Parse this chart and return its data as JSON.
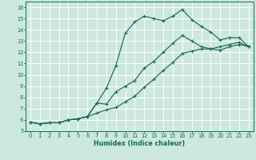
{
  "xlabel": "Humidex (Indice chaleur)",
  "bg_color": "#cce8df",
  "grid_color": "#ffffff",
  "line_color": "#1a6b5a",
  "xlim": [
    -0.5,
    23.5
  ],
  "ylim": [
    5,
    16.5
  ],
  "xticks": [
    0,
    1,
    2,
    3,
    4,
    5,
    6,
    7,
    8,
    9,
    10,
    11,
    12,
    13,
    14,
    15,
    16,
    17,
    18,
    19,
    20,
    21,
    22,
    23
  ],
  "yticks": [
    5,
    6,
    7,
    8,
    9,
    10,
    11,
    12,
    13,
    14,
    15,
    16
  ],
  "line1_x": [
    0,
    1,
    2,
    3,
    4,
    5,
    6,
    7,
    8,
    9,
    10,
    11,
    12,
    13,
    14,
    15,
    16,
    17,
    18,
    19,
    20,
    21,
    22,
    23
  ],
  "line1_y": [
    5.8,
    5.65,
    5.75,
    5.75,
    6.0,
    6.1,
    6.3,
    7.5,
    8.8,
    10.8,
    13.7,
    14.7,
    15.2,
    15.0,
    14.8,
    15.2,
    15.8,
    14.9,
    14.3,
    13.8,
    13.1,
    13.3,
    13.3,
    12.5
  ],
  "line2_x": [
    0,
    1,
    2,
    3,
    4,
    5,
    6,
    7,
    8,
    9,
    10,
    11,
    12,
    13,
    14,
    15,
    16,
    17,
    18,
    19,
    20,
    21,
    22,
    23
  ],
  "line2_y": [
    5.8,
    5.65,
    5.75,
    5.75,
    6.0,
    6.1,
    6.3,
    7.5,
    7.4,
    8.5,
    9.0,
    9.5,
    10.6,
    11.2,
    12.0,
    12.8,
    13.5,
    13.0,
    12.5,
    12.3,
    12.2,
    12.5,
    12.7,
    12.5
  ],
  "line3_x": [
    0,
    1,
    2,
    3,
    4,
    5,
    6,
    7,
    8,
    9,
    10,
    11,
    12,
    13,
    14,
    15,
    16,
    17,
    18,
    19,
    20,
    21,
    22,
    23
  ],
  "line3_y": [
    5.8,
    5.65,
    5.75,
    5.75,
    6.0,
    6.1,
    6.3,
    6.6,
    6.9,
    7.1,
    7.6,
    8.1,
    8.9,
    9.6,
    10.4,
    11.1,
    11.9,
    12.1,
    12.3,
    12.3,
    12.5,
    12.7,
    12.9,
    12.5
  ]
}
